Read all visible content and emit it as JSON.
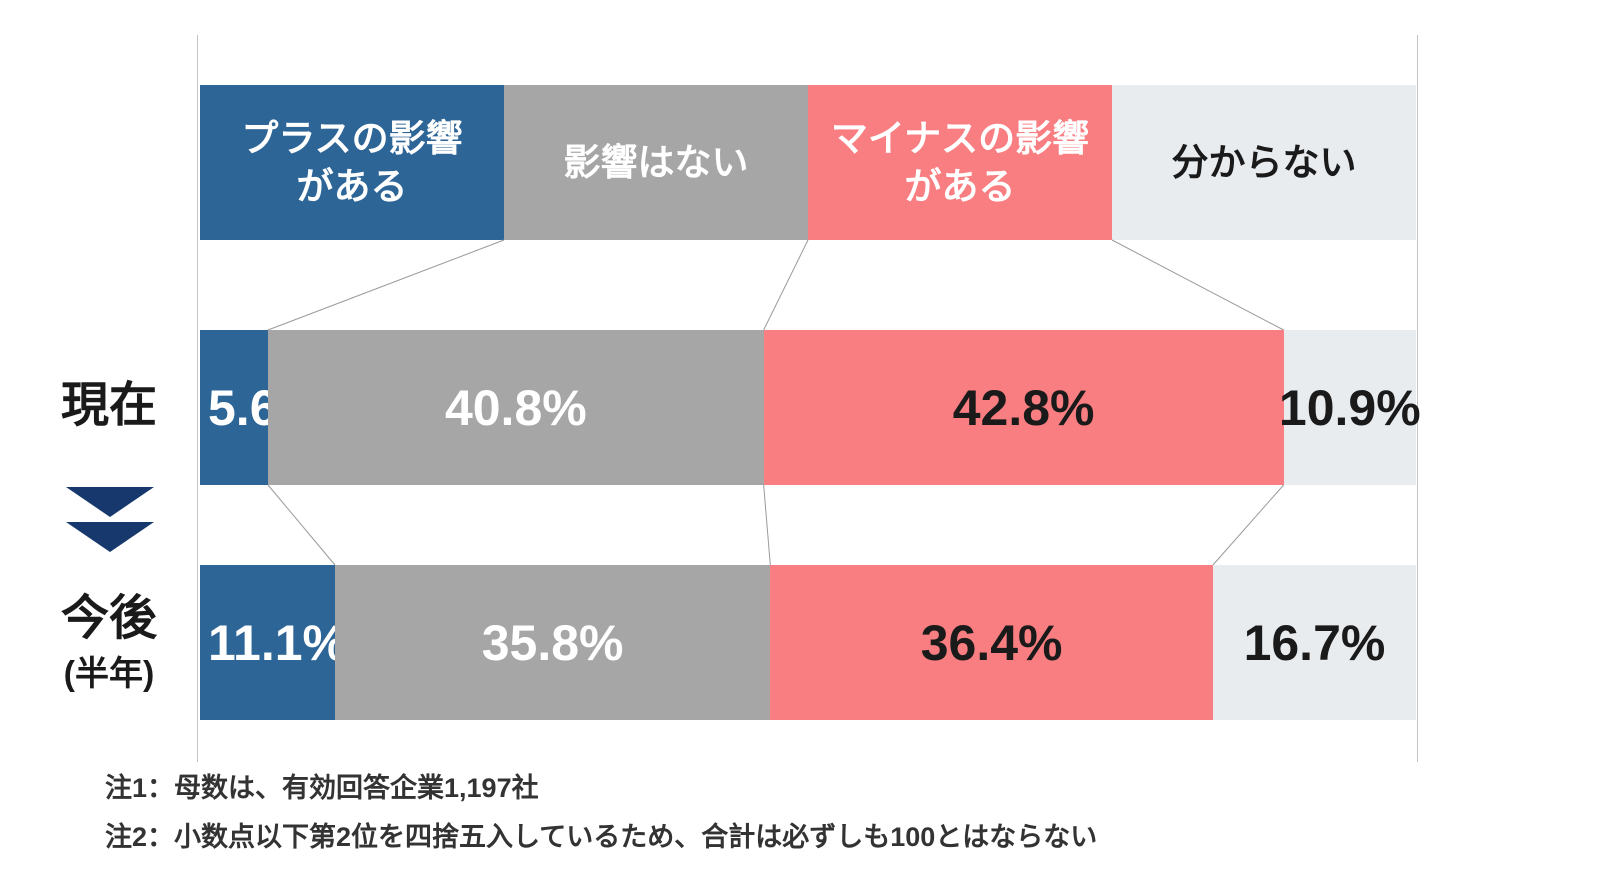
{
  "chart_data": {
    "type": "bar",
    "subtype": "horizontal-stacked-percentage",
    "title": "",
    "unit": "%",
    "legend_position": "top",
    "legend": [
      {
        "label": "プラスの影響\nがある",
        "color": "#2d6597",
        "text_color": "#ffffff"
      },
      {
        "label": "影響はない",
        "color": "#a6a6a6",
        "text_color": "#ffffff"
      },
      {
        "label": "マイナスの影響\nがある",
        "color": "#f97e81",
        "text_color": "#ffffff"
      },
      {
        "label": "分からない",
        "color": "#e9ecef",
        "text_color": "#1a1a1a"
      }
    ],
    "value_label_colors": [
      "#ffffff",
      "#ffffff",
      "#1a1a1a",
      "#1a1a1a"
    ],
    "categories": [
      "プラスの影響がある",
      "影響はない",
      "マイナスの影響がある",
      "分からない"
    ],
    "rows": [
      {
        "label": "現在",
        "sublabel": "",
        "values": [
          5.6,
          40.8,
          42.8,
          10.9
        ]
      },
      {
        "label": "今後",
        "sublabel": "(半年)",
        "values": [
          11.1,
          35.8,
          36.4,
          16.7
        ]
      }
    ],
    "grid": false,
    "axis_range": [
      0,
      100
    ]
  },
  "icons": {
    "between_rows": "double-down-arrow",
    "arrow_color": "#16386d"
  },
  "notes": [
    "注1：母数は、有効回答企業1,197社",
    "注2：小数点以下第2位を四捨五入しているため、合計は必ずしも100とはならない"
  ]
}
